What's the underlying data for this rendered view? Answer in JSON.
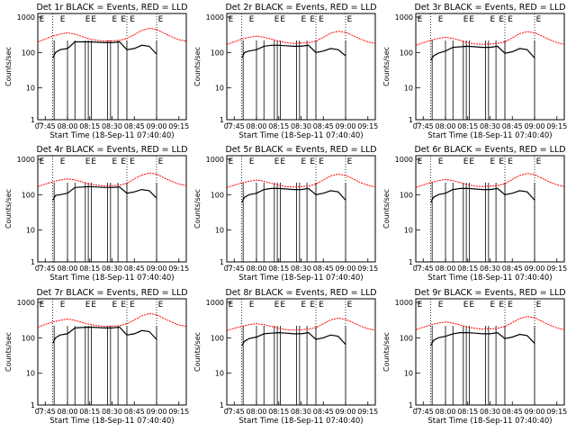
{
  "figure": {
    "start_time_label": "Start Time (18-Sep-11 07:40:40)",
    "ylabel": "Counts/sec",
    "x_tick_labels": [
      "07:45",
      "08:00",
      "08:15",
      "08:30",
      "08:45",
      "09:00",
      "09:15"
    ],
    "y_tick_labels": [
      "1",
      "10",
      "100",
      "1000"
    ],
    "flag_letter": "E",
    "colors": {
      "events": "#000000",
      "lld": "#ff0000"
    }
  },
  "chart_data": [
    {
      "type": "line",
      "title": "Det 1r BLACK = Events, RED = LLD",
      "xlabel": "Start Time (18-Sep-11 07:40:40)",
      "ylabel": "Counts/sec",
      "ylog": true,
      "ylim": [
        1,
        1000
      ],
      "x_ticks": [
        "07:45",
        "08:00",
        "08:15",
        "08:30",
        "08:45",
        "09:00",
        "09:15"
      ],
      "series": [
        {
          "name": "Events",
          "color": "#000000",
          "x": [
            "07:50",
            "07:52",
            "07:55",
            "08:00",
            "08:05",
            "08:10",
            "08:15",
            "08:20",
            "08:25",
            "08:30",
            "08:35",
            "08:40",
            "08:45",
            "08:50",
            "08:55",
            "09:00"
          ],
          "y": [
            70,
            100,
            120,
            130,
            200,
            200,
            200,
            195,
            190,
            190,
            200,
            120,
            130,
            160,
            150,
            90
          ]
        },
        {
          "name": "LLD",
          "color": "#ff0000",
          "x": [
            "07:40",
            "07:45",
            "07:50",
            "07:55",
            "08:00",
            "08:05",
            "08:10",
            "08:15",
            "08:20",
            "08:25",
            "08:30",
            "08:35",
            "08:40",
            "08:45",
            "08:50",
            "08:55",
            "09:00",
            "09:05",
            "09:10",
            "09:15",
            "09:20"
          ],
          "y": [
            200,
            240,
            290,
            330,
            360,
            330,
            280,
            240,
            220,
            210,
            215,
            220,
            250,
            320,
            420,
            480,
            450,
            350,
            280,
            230,
            210
          ]
        }
      ]
    },
    {
      "type": "line",
      "title": "Det 2r BLACK = Events, RED = LLD",
      "xlabel": "Start Time (18-Sep-11 07:40:40)",
      "ylabel": "Counts/sec",
      "ylog": true,
      "ylim": [
        1,
        1000
      ],
      "x_ticks": [
        "07:45",
        "08:00",
        "08:15",
        "08:30",
        "08:45",
        "09:00",
        "09:15"
      ],
      "series": [
        {
          "name": "Events",
          "color": "#000000",
          "x": [
            "07:50",
            "07:52",
            "07:55",
            "08:00",
            "08:05",
            "08:10",
            "08:15",
            "08:20",
            "08:25",
            "08:30",
            "08:35",
            "08:40",
            "08:45",
            "08:50",
            "08:55",
            "09:00"
          ],
          "y": [
            70,
            100,
            110,
            120,
            150,
            160,
            160,
            155,
            150,
            150,
            160,
            100,
            110,
            130,
            120,
            80
          ]
        },
        {
          "name": "LLD",
          "color": "#ff0000",
          "x": [
            "07:40",
            "07:45",
            "07:50",
            "07:55",
            "08:00",
            "08:05",
            "08:10",
            "08:15",
            "08:20",
            "08:25",
            "08:30",
            "08:35",
            "08:40",
            "08:45",
            "08:50",
            "08:55",
            "09:00",
            "09:05",
            "09:10",
            "09:15",
            "09:20"
          ],
          "y": [
            170,
            200,
            240,
            270,
            290,
            270,
            240,
            210,
            190,
            180,
            185,
            190,
            210,
            270,
            350,
            400,
            370,
            300,
            240,
            200,
            180
          ]
        }
      ]
    },
    {
      "type": "line",
      "title": "Det 3r BLACK = Events, RED = LLD",
      "xlabel": "Start Time (18-Sep-11 07:40:40)",
      "ylabel": "Counts/sec",
      "ylog": true,
      "ylim": [
        1,
        1000
      ],
      "x_ticks": [
        "07:45",
        "08:00",
        "08:15",
        "08:30",
        "08:45",
        "09:00",
        "09:15"
      ],
      "series": [
        {
          "name": "Events",
          "color": "#000000",
          "x": [
            "07:50",
            "07:52",
            "07:55",
            "08:00",
            "08:05",
            "08:10",
            "08:15",
            "08:20",
            "08:25",
            "08:30",
            "08:35",
            "08:40",
            "08:45",
            "08:50",
            "08:55",
            "09:00"
          ],
          "y": [
            60,
            80,
            95,
            110,
            140,
            145,
            150,
            145,
            140,
            140,
            150,
            95,
            105,
            130,
            120,
            70
          ]
        },
        {
          "name": "LLD",
          "color": "#ff0000",
          "x": [
            "07:40",
            "07:45",
            "07:50",
            "07:55",
            "08:00",
            "08:05",
            "08:10",
            "08:15",
            "08:20",
            "08:25",
            "08:30",
            "08:35",
            "08:40",
            "08:45",
            "08:50",
            "08:55",
            "09:00",
            "09:05",
            "09:10",
            "09:15",
            "09:20"
          ],
          "y": [
            160,
            190,
            220,
            250,
            270,
            250,
            220,
            190,
            175,
            170,
            175,
            180,
            200,
            260,
            340,
            390,
            360,
            290,
            230,
            190,
            170
          ]
        }
      ]
    },
    {
      "type": "line",
      "title": "Det 4r BLACK = Events, RED = LLD",
      "xlabel": "Start Time (18-Sep-11 07:40:40)",
      "ylabel": "Counts/sec",
      "ylog": true,
      "ylim": [
        1,
        1000
      ],
      "x_ticks": [
        "07:45",
        "08:00",
        "08:15",
        "08:30",
        "08:45",
        "09:00",
        "09:15"
      ],
      "series": [
        {
          "name": "Events",
          "color": "#000000",
          "x": [
            "07:50",
            "07:52",
            "07:55",
            "08:00",
            "08:05",
            "08:10",
            "08:15",
            "08:20",
            "08:25",
            "08:30",
            "08:35",
            "08:40",
            "08:45",
            "08:50",
            "08:55",
            "09:00"
          ],
          "y": [
            70,
            95,
            100,
            110,
            160,
            165,
            170,
            165,
            160,
            160,
            165,
            110,
            120,
            140,
            130,
            80
          ]
        },
        {
          "name": "LLD",
          "color": "#ff0000",
          "x": [
            "07:40",
            "07:45",
            "07:50",
            "07:55",
            "08:00",
            "08:05",
            "08:10",
            "08:15",
            "08:20",
            "08:25",
            "08:30",
            "08:35",
            "08:40",
            "08:45",
            "08:50",
            "08:55",
            "09:00",
            "09:05",
            "09:10",
            "09:15",
            "09:20"
          ],
          "y": [
            170,
            200,
            230,
            260,
            280,
            260,
            230,
            200,
            185,
            175,
            180,
            185,
            210,
            280,
            360,
            410,
            380,
            300,
            240,
            200,
            180
          ]
        }
      ]
    },
    {
      "type": "line",
      "title": "Det 5r BLACK = Events, RED = LLD",
      "xlabel": "Start Time (18-Sep-11 07:40:40)",
      "ylabel": "Counts/sec",
      "ylog": true,
      "ylim": [
        1,
        1000
      ],
      "x_ticks": [
        "07:45",
        "08:00",
        "08:15",
        "08:30",
        "08:45",
        "09:00",
        "09:15"
      ],
      "series": [
        {
          "name": "Events",
          "color": "#000000",
          "x": [
            "07:50",
            "07:52",
            "07:55",
            "08:00",
            "08:05",
            "08:10",
            "08:15",
            "08:20",
            "08:25",
            "08:30",
            "08:35",
            "08:40",
            "08:45",
            "08:50",
            "08:55",
            "09:00"
          ],
          "y": [
            60,
            85,
            100,
            110,
            140,
            150,
            150,
            145,
            140,
            140,
            150,
            100,
            110,
            130,
            120,
            70
          ]
        },
        {
          "name": "LLD",
          "color": "#ff0000",
          "x": [
            "07:40",
            "07:45",
            "07:50",
            "07:55",
            "08:00",
            "08:05",
            "08:10",
            "08:15",
            "08:20",
            "08:25",
            "08:30",
            "08:35",
            "08:40",
            "08:45",
            "08:50",
            "08:55",
            "09:00",
            "09:05",
            "09:10",
            "09:15",
            "09:20"
          ],
          "y": [
            160,
            185,
            215,
            240,
            260,
            240,
            210,
            185,
            170,
            165,
            170,
            175,
            200,
            260,
            340,
            380,
            350,
            280,
            220,
            185,
            165
          ]
        }
      ]
    },
    {
      "type": "line",
      "title": "Det 6r BLACK = Events, RED = LLD",
      "xlabel": "Start Time (18-Sep-11 07:40:40)",
      "ylabel": "Counts/sec",
      "ylog": true,
      "ylim": [
        1,
        1000
      ],
      "x_ticks": [
        "07:45",
        "08:00",
        "08:15",
        "08:30",
        "08:45",
        "09:00",
        "09:15"
      ],
      "series": [
        {
          "name": "Events",
          "color": "#000000",
          "x": [
            "07:50",
            "07:52",
            "07:55",
            "08:00",
            "08:05",
            "08:10",
            "08:15",
            "08:20",
            "08:25",
            "08:30",
            "08:35",
            "08:40",
            "08:45",
            "08:50",
            "08:55",
            "09:00"
          ],
          "y": [
            60,
            85,
            100,
            110,
            140,
            150,
            150,
            145,
            140,
            140,
            150,
            100,
            110,
            130,
            120,
            70
          ]
        },
        {
          "name": "LLD",
          "color": "#ff0000",
          "x": [
            "07:40",
            "07:45",
            "07:50",
            "07:55",
            "08:00",
            "08:05",
            "08:10",
            "08:15",
            "08:20",
            "08:25",
            "08:30",
            "08:35",
            "08:40",
            "08:45",
            "08:50",
            "08:55",
            "09:00",
            "09:05",
            "09:10",
            "09:15",
            "09:20"
          ],
          "y": [
            160,
            190,
            220,
            250,
            270,
            250,
            220,
            190,
            175,
            170,
            175,
            180,
            205,
            270,
            350,
            400,
            370,
            290,
            230,
            190,
            170
          ]
        }
      ]
    },
    {
      "type": "line",
      "title": "Det 7r BLACK = Events, RED = LLD",
      "xlabel": "Start Time (18-Sep-11 07:40:40)",
      "ylabel": "Counts/sec",
      "ylog": true,
      "ylim": [
        1,
        1000
      ],
      "x_ticks": [
        "07:45",
        "08:00",
        "08:15",
        "08:30",
        "08:45",
        "09:00",
        "09:15"
      ],
      "series": [
        {
          "name": "Events",
          "color": "#000000",
          "x": [
            "07:50",
            "07:52",
            "07:55",
            "08:00",
            "08:05",
            "08:10",
            "08:15",
            "08:20",
            "08:25",
            "08:30",
            "08:35",
            "08:40",
            "08:45",
            "08:50",
            "08:55",
            "09:00"
          ],
          "y": [
            70,
            100,
            120,
            130,
            190,
            195,
            200,
            195,
            190,
            190,
            200,
            120,
            130,
            160,
            150,
            90
          ]
        },
        {
          "name": "LLD",
          "color": "#ff0000",
          "x": [
            "07:40",
            "07:45",
            "07:50",
            "07:55",
            "08:00",
            "08:05",
            "08:10",
            "08:15",
            "08:20",
            "08:25",
            "08:30",
            "08:35",
            "08:40",
            "08:45",
            "08:50",
            "08:55",
            "09:00",
            "09:05",
            "09:10",
            "09:15",
            "09:20"
          ],
          "y": [
            200,
            240,
            280,
            310,
            340,
            310,
            270,
            240,
            220,
            210,
            215,
            220,
            250,
            320,
            420,
            480,
            450,
            350,
            280,
            230,
            210
          ]
        }
      ]
    },
    {
      "type": "line",
      "title": "Det 8r BLACK = Events, RED = LLD",
      "xlabel": "Start Time (18-Sep-11 07:40:40)",
      "ylabel": "Counts/sec",
      "ylog": true,
      "ylim": [
        1,
        1000
      ],
      "x_ticks": [
        "07:45",
        "08:00",
        "08:15",
        "08:30",
        "08:45",
        "09:00",
        "09:15"
      ],
      "series": [
        {
          "name": "Events",
          "color": "#000000",
          "x": [
            "07:50",
            "07:52",
            "07:55",
            "08:00",
            "08:05",
            "08:10",
            "08:15",
            "08:20",
            "08:25",
            "08:30",
            "08:35",
            "08:40",
            "08:45",
            "08:50",
            "08:55",
            "09:00"
          ],
          "y": [
            60,
            80,
            95,
            105,
            130,
            135,
            140,
            135,
            130,
            130,
            140,
            90,
            100,
            120,
            110,
            65
          ]
        },
        {
          "name": "LLD",
          "color": "#ff0000",
          "x": [
            "07:40",
            "07:45",
            "07:50",
            "07:55",
            "08:00",
            "08:05",
            "08:10",
            "08:15",
            "08:20",
            "08:25",
            "08:30",
            "08:35",
            "08:40",
            "08:45",
            "08:50",
            "08:55",
            "09:00",
            "09:05",
            "09:10",
            "09:15",
            "09:20"
          ],
          "y": [
            160,
            185,
            210,
            235,
            250,
            235,
            210,
            185,
            170,
            165,
            170,
            175,
            195,
            250,
            320,
            360,
            330,
            270,
            215,
            180,
            165
          ]
        }
      ]
    },
    {
      "type": "line",
      "title": "Det 9r BLACK = Events, RED = LLD",
      "xlabel": "Start Time (18-Sep-11 07:40:40)",
      "ylabel": "Counts/sec",
      "ylog": true,
      "ylim": [
        1,
        1000
      ],
      "x_ticks": [
        "07:45",
        "08:00",
        "08:15",
        "08:30",
        "08:45",
        "09:00",
        "09:15"
      ],
      "series": [
        {
          "name": "Events",
          "color": "#000000",
          "x": [
            "07:50",
            "07:52",
            "07:55",
            "08:00",
            "08:05",
            "08:10",
            "08:15",
            "08:20",
            "08:25",
            "08:30",
            "08:35",
            "08:40",
            "08:45",
            "08:50",
            "08:55",
            "09:00"
          ],
          "y": [
            60,
            85,
            100,
            110,
            130,
            140,
            140,
            135,
            130,
            130,
            140,
            95,
            105,
            125,
            115,
            70
          ]
        },
        {
          "name": "LLD",
          "color": "#ff0000",
          "x": [
            "07:40",
            "07:45",
            "07:50",
            "07:55",
            "08:00",
            "08:05",
            "08:10",
            "08:15",
            "08:20",
            "08:25",
            "08:30",
            "08:35",
            "08:40",
            "08:45",
            "08:50",
            "08:55",
            "09:00",
            "09:05",
            "09:10",
            "09:15",
            "09:20"
          ],
          "y": [
            170,
            200,
            230,
            260,
            280,
            260,
            230,
            200,
            185,
            175,
            180,
            185,
            210,
            270,
            350,
            400,
            370,
            290,
            230,
            190,
            170
          ]
        }
      ]
    }
  ]
}
